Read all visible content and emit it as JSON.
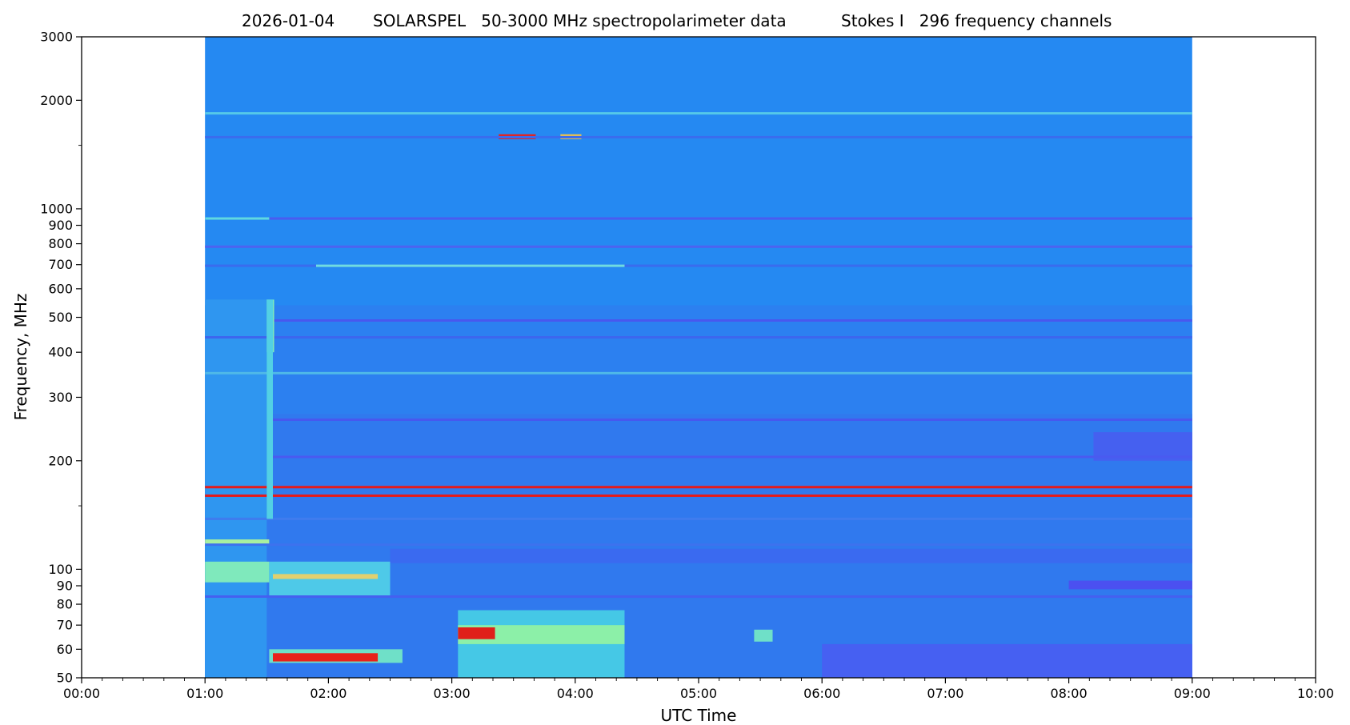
{
  "chart_data": {
    "type": "heatmap",
    "title_parts": [
      "2026-01-04",
      "SOLARSPEL   50-3000 MHz spectropolarimeter data",
      "Stokes I   296 frequency channels"
    ],
    "xlabel": "UTC Time",
    "ylabel": "Frequency, MHz",
    "x_unit": "hours UTC",
    "xlim": [
      0,
      10
    ],
    "ylim": [
      50,
      3000
    ],
    "y_scale": "log",
    "data_time_range": [
      1.0,
      9.0
    ],
    "x_ticks": [
      {
        "value": 0,
        "label": "00:00"
      },
      {
        "value": 1,
        "label": "01:00"
      },
      {
        "value": 2,
        "label": "02:00"
      },
      {
        "value": 3,
        "label": "03:00"
      },
      {
        "value": 4,
        "label": "04:00"
      },
      {
        "value": 5,
        "label": "05:00"
      },
      {
        "value": 6,
        "label": "06:00"
      },
      {
        "value": 7,
        "label": "07:00"
      },
      {
        "value": 8,
        "label": "08:00"
      },
      {
        "value": 9,
        "label": "09:00"
      },
      {
        "value": 10,
        "label": "10:00"
      }
    ],
    "y_ticks": [
      {
        "value": 50,
        "label": "50"
      },
      {
        "value": 60,
        "label": "60"
      },
      {
        "value": 70,
        "label": "70"
      },
      {
        "value": 80,
        "label": "80"
      },
      {
        "value": 90,
        "label": "90"
      },
      {
        "value": 100,
        "label": "100"
      },
      {
        "value": 200,
        "label": "200"
      },
      {
        "value": 300,
        "label": "300"
      },
      {
        "value": 400,
        "label": "400"
      },
      {
        "value": 500,
        "label": "500"
      },
      {
        "value": 600,
        "label": "600"
      },
      {
        "value": 700,
        "label": "700"
      },
      {
        "value": 800,
        "label": "800"
      },
      {
        "value": 900,
        "label": "900"
      },
      {
        "value": 1000,
        "label": "1000"
      },
      {
        "value": 2000,
        "label": "2000"
      },
      {
        "value": 3000,
        "label": "3000"
      }
    ],
    "y_minor_ticks": [
      150,
      1500
    ],
    "colormap": "rainbow (blue-low to red-high)",
    "colors": {
      "background_level": "#2589f2",
      "low_level": "#4a5cf0",
      "mid_level": "#45c8e6",
      "high_level": "#9cf3a8",
      "peak_level": "#e60a0a"
    },
    "features": [
      {
        "kind": "band",
        "f_range": [
          50,
          3000
        ],
        "t_range": [
          1.0,
          9.0
        ],
        "color": "#2589f2"
      },
      {
        "kind": "band",
        "f_range": [
          50,
          540
        ],
        "t_range": [
          1.0,
          9.0
        ],
        "color": "#2c80f0"
      },
      {
        "kind": "band",
        "f_range": [
          50,
          270
        ],
        "t_range": [
          1.0,
          9.0
        ],
        "color": "#3079ee"
      },
      {
        "kind": "band",
        "f_range": [
          50,
          560
        ],
        "t_range": [
          1.0,
          1.5
        ],
        "color": "#2f96f0"
      },
      {
        "kind": "band",
        "f_range": [
          200,
          240
        ],
        "t_range": [
          8.2,
          9.0
        ],
        "color": "#4560f0"
      },
      {
        "kind": "band",
        "f_range": [
          50,
          62
        ],
        "t_range": [
          6.0,
          9.0
        ],
        "color": "#4660f2"
      },
      {
        "kind": "band",
        "f_range": [
          88,
          93
        ],
        "t_range": [
          8.0,
          9.0
        ],
        "color": "#4b50f0"
      },
      {
        "kind": "band",
        "f_range": [
          104,
          114
        ],
        "t_range": [
          2.5,
          9.0
        ],
        "color": "#3a6af0"
      },
      {
        "kind": "band",
        "f_range": [
          92,
          105
        ],
        "t_range": [
          1.0,
          1.52
        ],
        "color": "#7fe9bc"
      },
      {
        "kind": "band",
        "f_range": [
          117,
          121
        ],
        "t_range": [
          1.0,
          1.52
        ],
        "color": "#a8f0a0"
      },
      {
        "kind": "band",
        "f_range": [
          84,
          105
        ],
        "t_range": [
          1.52,
          2.5
        ],
        "color": "#4ec9e8"
      },
      {
        "kind": "band",
        "f_range": [
          94,
          97
        ],
        "t_range": [
          1.55,
          2.4
        ],
        "color": "#e0d070"
      },
      {
        "kind": "band",
        "f_range": [
          55,
          60
        ],
        "t_range": [
          1.52,
          2.6
        ],
        "color": "#6fe0c8"
      },
      {
        "kind": "band",
        "f_range": [
          55.5,
          58.5
        ],
        "t_range": [
          1.55,
          2.4
        ],
        "color": "#e8221a"
      },
      {
        "kind": "band",
        "f_range": [
          50,
          77
        ],
        "t_range": [
          3.05,
          4.4
        ],
        "color": "#45c8e6"
      },
      {
        "kind": "band",
        "f_range": [
          62,
          70
        ],
        "t_range": [
          3.05,
          4.4
        ],
        "color": "#8cf0a8"
      },
      {
        "kind": "band",
        "f_range": [
          64,
          69
        ],
        "t_range": [
          3.05,
          3.35
        ],
        "color": "#e0201a"
      },
      {
        "kind": "band",
        "f_range": [
          63,
          68
        ],
        "t_range": [
          5.45,
          5.6
        ],
        "color": "#6fe0c8"
      },
      {
        "kind": "band",
        "f_range": [
          1560,
          1610
        ],
        "t_range": [
          3.38,
          3.68
        ],
        "color": "#e8221a"
      },
      {
        "kind": "band",
        "f_range": [
          1560,
          1610
        ],
        "t_range": [
          3.88,
          4.05
        ],
        "color": "#e8c050"
      },
      {
        "kind": "line",
        "f": 1840,
        "t_range": [
          1.0,
          9.0
        ],
        "color": "#55c8e8"
      },
      {
        "kind": "line",
        "f": 1580,
        "t_range": [
          1.0,
          9.0
        ],
        "color": "#3a6cee"
      },
      {
        "kind": "line",
        "f": 940,
        "t_range": [
          1.0,
          9.0
        ],
        "color": "#4a5cf0"
      },
      {
        "kind": "line",
        "f": 940,
        "t_range": [
          1.0,
          1.52
        ],
        "color": "#5fd8e0"
      },
      {
        "kind": "line",
        "f": 785,
        "t_range": [
          1.0,
          9.0
        ],
        "color": "#4d63f0"
      },
      {
        "kind": "line",
        "f": 695,
        "t_range": [
          1.0,
          9.0
        ],
        "color": "#3a6cee"
      },
      {
        "kind": "line",
        "f": 695,
        "t_range": [
          1.9,
          4.4
        ],
        "color": "#6fdce0"
      },
      {
        "kind": "line",
        "f": 490,
        "t_range": [
          1.52,
          9.0
        ],
        "color": "#4858ef"
      },
      {
        "kind": "line",
        "f": 440,
        "t_range": [
          1.0,
          9.0
        ],
        "color": "#3d66ee"
      },
      {
        "kind": "line",
        "f": 350,
        "t_range": [
          1.0,
          9.0
        ],
        "color": "#4fb8e8"
      },
      {
        "kind": "line",
        "f": 260,
        "t_range": [
          1.52,
          9.0
        ],
        "color": "#4858ef"
      },
      {
        "kind": "line",
        "f": 205,
        "t_range": [
          1.52,
          9.0
        ],
        "color": "#4a5af0"
      },
      {
        "kind": "line",
        "f": 169,
        "t_range": [
          1.0,
          9.0
        ],
        "color": "#e61a1a"
      },
      {
        "kind": "line",
        "f": 160,
        "t_range": [
          1.0,
          9.0
        ],
        "color": "#e61a1a"
      },
      {
        "kind": "line",
        "f": 138,
        "t_range": [
          1.0,
          9.0
        ],
        "color": "#3f7cee"
      },
      {
        "kind": "line",
        "f": 117,
        "t_range": [
          1.0,
          9.0
        ],
        "color": "#3d72ee"
      },
      {
        "kind": "line",
        "f": 84,
        "t_range": [
          1.0,
          9.0
        ],
        "color": "#4560f0"
      },
      {
        "kind": "line",
        "f": 420,
        "t_range": [
          1.52,
          1.56
        ],
        "color": "#e8221a"
      },
      {
        "kind": "band",
        "f_range": [
          400,
          560
        ],
        "t_range": [
          1.5,
          1.56
        ],
        "color": "#7fe9bc"
      },
      {
        "kind": "band",
        "f_range": [
          138,
          560
        ],
        "t_range": [
          1.5,
          1.55
        ],
        "color": "#52d0e4"
      }
    ]
  }
}
